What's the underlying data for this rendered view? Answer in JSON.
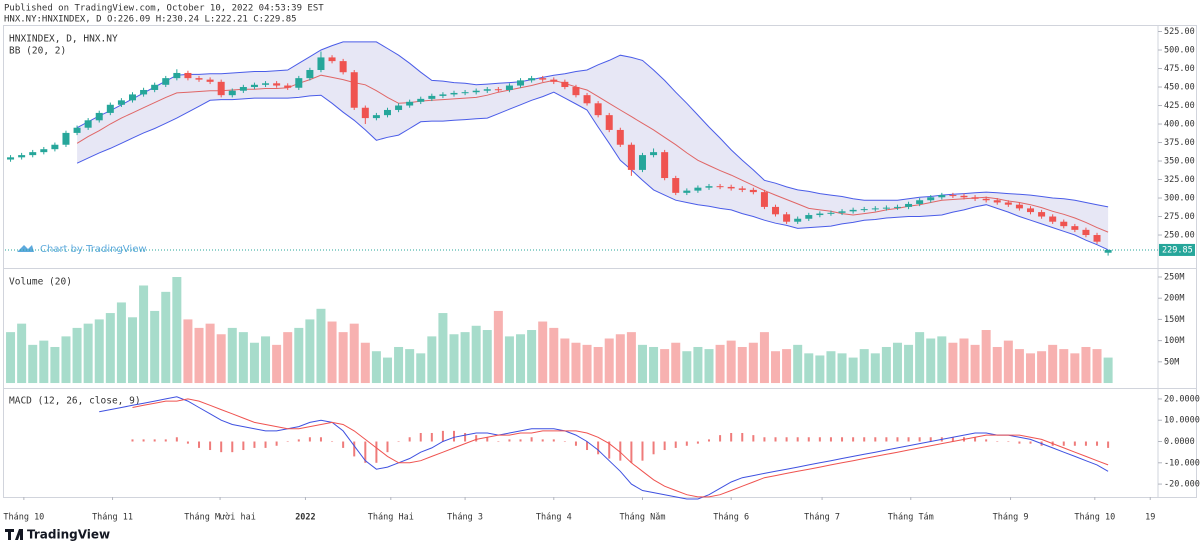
{
  "header": {
    "published": "Published on TradingView.com, October 10, 2022 04:53:39 EST",
    "symbol_line": "HNX.NY:HNXINDEX, D O:226.09 H:230.24 L:222.21 C:229.85"
  },
  "watermark": "Chart by TradingView",
  "footer": "TradingView",
  "chart_data": [
    {
      "type": "candlestick",
      "title": "HNXINDEX, D, HNX.NY",
      "indicator": "BB (20, 2)",
      "open": [
        352,
        355,
        358,
        362,
        366,
        372,
        388,
        395,
        405,
        415,
        426,
        432,
        440,
        446,
        453,
        462,
        469,
        462,
        460,
        457,
        439,
        445,
        450,
        453,
        455,
        452,
        449,
        462,
        473,
        490,
        485,
        470,
        422,
        408,
        412,
        419,
        425,
        430,
        434,
        438,
        440,
        442,
        443,
        445,
        447,
        446,
        452,
        459,
        462,
        460,
        457,
        450,
        439,
        428,
        412,
        392,
        372,
        338,
        358,
        362,
        327,
        307,
        310,
        314,
        316,
        315,
        313,
        311,
        308,
        288,
        278,
        268,
        272,
        277,
        279,
        280,
        282,
        284,
        285,
        286,
        287,
        288,
        292,
        297,
        301,
        304,
        303,
        301,
        299,
        297,
        294,
        291,
        286,
        281,
        275,
        268,
        262,
        257,
        250,
        226.09
      ],
      "high": [
        358,
        361,
        365,
        369,
        375,
        391,
        398,
        408,
        418,
        429,
        435,
        443,
        449,
        456,
        465,
        474,
        472,
        465,
        463,
        460,
        448,
        453,
        456,
        458,
        458,
        455,
        465,
        476,
        498,
        493,
        488,
        473,
        425,
        415,
        422,
        428,
        433,
        437,
        441,
        443,
        445,
        446,
        448,
        450,
        450,
        455,
        462,
        465,
        465,
        463,
        460,
        453,
        442,
        431,
        415,
        395,
        375,
        361,
        367,
        365,
        330,
        313,
        317,
        319,
        319,
        318,
        316,
        314,
        311,
        291,
        281,
        275,
        280,
        282,
        283,
        285,
        287,
        288,
        289,
        290,
        291,
        295,
        300,
        304,
        307,
        307,
        306,
        304,
        302,
        300,
        297,
        294,
        289,
        284,
        278,
        271,
        265,
        260,
        253,
        230.24
      ],
      "low": [
        349,
        352,
        355,
        359,
        363,
        369,
        385,
        392,
        402,
        412,
        423,
        429,
        437,
        443,
        450,
        459,
        459,
        457,
        454,
        436,
        436,
        442,
        447,
        450,
        449,
        446,
        446,
        459,
        470,
        482,
        467,
        419,
        400,
        405,
        409,
        416,
        422,
        427,
        431,
        435,
        437,
        439,
        440,
        442,
        443,
        443,
        449,
        456,
        457,
        454,
        447,
        436,
        425,
        409,
        389,
        369,
        330,
        335,
        355,
        324,
        304,
        304,
        307,
        311,
        312,
        310,
        308,
        305,
        285,
        275,
        265,
        265,
        269,
        274,
        276,
        277,
        279,
        281,
        282,
        283,
        284,
        285,
        289,
        294,
        298,
        300,
        298,
        296,
        294,
        291,
        288,
        283,
        278,
        272,
        265,
        259,
        254,
        247,
        238,
        222.21
      ],
      "close": [
        355,
        358,
        362,
        366,
        372,
        388,
        395,
        405,
        415,
        426,
        432,
        440,
        446,
        453,
        462,
        469,
        462,
        460,
        457,
        439,
        445,
        450,
        453,
        455,
        452,
        449,
        462,
        473,
        490,
        485,
        470,
        422,
        408,
        412,
        419,
        425,
        430,
        434,
        438,
        440,
        442,
        443,
        445,
        447,
        446,
        452,
        459,
        462,
        460,
        457,
        450,
        439,
        428,
        412,
        392,
        372,
        338,
        358,
        362,
        327,
        307,
        310,
        314,
        316,
        315,
        313,
        311,
        308,
        288,
        278,
        268,
        272,
        277,
        279,
        280,
        282,
        284,
        285,
        286,
        287,
        288,
        292,
        297,
        301,
        304,
        303,
        301,
        299,
        297,
        294,
        291,
        286,
        281,
        275,
        268,
        262,
        257,
        250,
        241,
        229.85
      ],
      "up_color": "#26a69a",
      "down_color": "#ef5350",
      "bands": {
        "color": "#4a5ce8",
        "middle_color": "#e06666",
        "fill": "rgba(120,123,200,0.18)",
        "upper": [
          null,
          null,
          null,
          null,
          null,
          null,
          395,
          403,
          411,
          418,
          426,
          434,
          442,
          450,
          458,
          466,
          467,
          467,
          468,
          468,
          469,
          470,
          471,
          471,
          472,
          473,
          482,
          491,
          500,
          506,
          511,
          511,
          511,
          511,
          502,
          493,
          482,
          470,
          459,
          458,
          456,
          455,
          453,
          454,
          455,
          456,
          457,
          460,
          463,
          466,
          468,
          471,
          473,
          480,
          486,
          493,
          490,
          486,
          473,
          459,
          443,
          428,
          412,
          396,
          381,
          365,
          351,
          338,
          324,
          320,
          315,
          311,
          309,
          306,
          304,
          302,
          299,
          297,
          297,
          297,
          297,
          299,
          301,
          302,
          304,
          305,
          306,
          307,
          308,
          307,
          306,
          305,
          304,
          302,
          300,
          299,
          297,
          294,
          291,
          288
        ],
        "middle": [
          null,
          null,
          null,
          null,
          null,
          null,
          374,
          383,
          391,
          400,
          408,
          415,
          422,
          429,
          436,
          442,
          443,
          444,
          445,
          445,
          446,
          447,
          447,
          448,
          448,
          449,
          455,
          460,
          466,
          463,
          460,
          456,
          453,
          445,
          436,
          428,
          429,
          431,
          432,
          433,
          434,
          435,
          436,
          439,
          443,
          446,
          449,
          452,
          456,
          459,
          455,
          450,
          446,
          437,
          428,
          419,
          410,
          401,
          392,
          382,
          372,
          361,
          351,
          344,
          337,
          331,
          324,
          317,
          310,
          304,
          298,
          292,
          286,
          284,
          282,
          279,
          277,
          279,
          281,
          284,
          286,
          289,
          291,
          294,
          297,
          298,
          299,
          300,
          301,
          299,
          296,
          294,
          291,
          287,
          282,
          278,
          273,
          267,
          260,
          254
        ],
        "lower": [
          null,
          null,
          null,
          null,
          null,
          null,
          347,
          354,
          361,
          367,
          374,
          381,
          388,
          394,
          401,
          408,
          416,
          424,
          432,
          433,
          433,
          434,
          435,
          435,
          435,
          435,
          436,
          438,
          439,
          428,
          416,
          405,
          392,
          378,
          382,
          385,
          394,
          403,
          404,
          404,
          405,
          406,
          407,
          408,
          414,
          420,
          426,
          432,
          437,
          443,
          435,
          427,
          419,
          396,
          374,
          351,
          338,
          324,
          311,
          304,
          297,
          294,
          291,
          289,
          286,
          284,
          279,
          275,
          270,
          266,
          263,
          259,
          260,
          261,
          262,
          265,
          267,
          270,
          271,
          273,
          274,
          275,
          275,
          276,
          277,
          281,
          284,
          288,
          291,
          286,
          281,
          275,
          270,
          265,
          260,
          255,
          250,
          243,
          237,
          230
        ]
      },
      "last_color": "#26a69a",
      "xlim": [
        -0.5,
        103.5
      ],
      "ylim": [
        206.8,
        533.8
      ],
      "yticks": [
        {
          "value": 250,
          "label": "250.00"
        },
        {
          "value": 275,
          "label": "275.00"
        },
        {
          "value": 300,
          "label": "300.00"
        },
        {
          "value": 325,
          "label": "325.00"
        },
        {
          "value": 350,
          "label": "350.00"
        },
        {
          "value": 375,
          "label": "375.00"
        },
        {
          "value": 400,
          "label": "400.00"
        },
        {
          "value": 425,
          "label": "425.00"
        },
        {
          "value": 450,
          "label": "450.00"
        },
        {
          "value": 475,
          "label": "475.00"
        },
        {
          "value": 500,
          "label": "500.00"
        },
        {
          "value": 525,
          "label": "525.00"
        }
      ]
    },
    {
      "type": "volume",
      "title": "Volume (20)",
      "values": [
        120,
        140,
        90,
        100,
        85,
        110,
        130,
        140,
        150,
        165,
        190,
        155,
        230,
        170,
        215,
        250,
        150,
        130,
        140,
        115,
        130,
        120,
        95,
        110,
        90,
        120,
        130,
        150,
        175,
        145,
        120,
        140,
        95,
        75,
        60,
        85,
        80,
        70,
        110,
        165,
        115,
        120,
        135,
        125,
        170,
        110,
        115,
        125,
        145,
        130,
        105,
        95,
        90,
        85,
        105,
        115,
        120,
        90,
        85,
        80,
        95,
        75,
        85,
        80,
        90,
        100,
        85,
        95,
        120,
        75,
        80,
        90,
        70,
        65,
        75,
        70,
        60,
        80,
        70,
        85,
        95,
        90,
        120,
        105,
        110,
        95,
        105,
        90,
        125,
        85,
        100,
        80,
        70,
        75,
        90,
        80,
        70,
        85,
        80,
        60
      ],
      "up_color": "#a7dccb",
      "down_color": "#f7b1b0",
      "xlim": [
        -0.5,
        103.5
      ],
      "ylim": [
        -7,
        266.5
      ],
      "yticks": [
        {
          "value": 50,
          "label": "50M"
        },
        {
          "value": 100,
          "label": "100M"
        },
        {
          "value": 150,
          "label": "150M"
        },
        {
          "value": 200,
          "label": "200M"
        },
        {
          "value": 250,
          "label": "250M"
        }
      ]
    },
    {
      "type": "macd",
      "title": "MACD (12, 26, close, 9)",
      "macd": [
        null,
        null,
        null,
        null,
        null,
        null,
        null,
        null,
        14,
        15,
        16,
        17,
        18,
        19,
        20,
        21,
        19,
        16,
        13,
        10,
        8,
        7,
        6,
        5,
        5,
        6,
        7,
        9,
        10,
        9,
        5,
        -2,
        -9,
        -13,
        -12,
        -10,
        -8,
        -5,
        -3,
        0,
        2,
        3,
        4,
        4,
        3,
        4,
        5,
        6,
        6,
        6,
        5,
        3,
        0,
        -4,
        -9,
        -14,
        -20,
        -23,
        -24,
        -25,
        -26,
        -27,
        -27,
        -25,
        -22,
        -19,
        -17,
        -16,
        -15,
        -14,
        -13,
        -12,
        -11,
        -10,
        -9,
        -8,
        -7,
        -6,
        -5,
        -4,
        -3,
        -2,
        -1,
        0,
        1,
        2,
        3,
        4,
        4,
        3,
        3,
        2,
        1,
        -1,
        -3,
        -5,
        -7,
        -9,
        -11,
        -14
      ],
      "signal": [
        null,
        null,
        null,
        null,
        null,
        null,
        null,
        null,
        null,
        null,
        null,
        16,
        17,
        18,
        19,
        19,
        20,
        19,
        17,
        15,
        13,
        11,
        9,
        8,
        7,
        6,
        6,
        7,
        8,
        9,
        8,
        5,
        1,
        -3,
        -7,
        -10,
        -10,
        -9,
        -7,
        -5,
        -3,
        -1,
        1,
        2,
        3,
        3,
        4,
        4,
        5,
        5,
        5,
        5,
        4,
        2,
        -1,
        -5,
        -10,
        -14,
        -18,
        -21,
        -23,
        -25,
        -26,
        -26,
        -25,
        -23,
        -21,
        -19,
        -17,
        -16,
        -15,
        -14,
        -13,
        -12,
        -11,
        -10,
        -9,
        -8,
        -7,
        -6,
        -5,
        -4,
        -3,
        -2,
        -1,
        0,
        1,
        2,
        3,
        3,
        3,
        3,
        2,
        1,
        -1,
        -3,
        -5,
        -7,
        -9,
        -11
      ],
      "histogram": [
        null,
        null,
        null,
        null,
        null,
        null,
        null,
        null,
        null,
        null,
        null,
        1,
        1,
        1,
        1,
        2,
        -1,
        -3,
        -4,
        -5,
        -5,
        -4,
        -3,
        -3,
        -2,
        0,
        1,
        2,
        2,
        0,
        -3,
        -7,
        -10,
        -10,
        -5,
        0,
        2,
        4,
        4,
        5,
        5,
        4,
        3,
        2,
        0,
        1,
        1,
        2,
        1,
        1,
        0,
        -2,
        -4,
        -6,
        -8,
        -9,
        -10,
        -9,
        -6,
        -4,
        -3,
        -2,
        -1,
        1,
        3,
        4,
        4,
        3,
        2,
        2,
        2,
        2,
        2,
        2,
        2,
        2,
        2,
        2,
        2,
        2,
        2,
        2,
        2,
        2,
        2,
        2,
        2,
        2,
        1,
        0,
        0,
        -1,
        -1,
        -2,
        -2,
        -2,
        -2,
        -2,
        -2,
        -3
      ],
      "macd_color": "#3f51e0",
      "signal_color": "#ef5350",
      "histogram_color": "#ef7b7a",
      "xlim": [
        -0.5,
        103.5
      ],
      "ylim": [
        -25.6,
        24.2
      ],
      "yticks": [
        {
          "value": 20,
          "label": "20.0000"
        },
        {
          "value": 10,
          "label": "10.0000"
        },
        {
          "value": 0,
          "label": "0.0000"
        },
        {
          "value": -10,
          "label": "-10.0000"
        },
        {
          "value": -20,
          "label": "-20.0000"
        }
      ],
      "xticks": [
        {
          "value": 1.2,
          "label": "Tháng 10"
        },
        {
          "value": 9.2,
          "label": "Tháng 11"
        },
        {
          "value": 18.9,
          "label": "Tháng Mười hai"
        },
        {
          "value": 26.6,
          "label": "2022"
        },
        {
          "value": 34.3,
          "label": "Tháng Hai"
        },
        {
          "value": 41,
          "label": "Tháng 3"
        },
        {
          "value": 49,
          "label": "Tháng 4"
        },
        {
          "value": 57,
          "label": "Tháng Năm"
        },
        {
          "value": 65,
          "label": "Tháng 6"
        },
        {
          "value": 73.2,
          "label": "Tháng 7"
        },
        {
          "value": 81.2,
          "label": "Tháng Tám"
        },
        {
          "value": 90.2,
          "label": "Tháng 9"
        },
        {
          "value": 97.8,
          "label": "Tháng 10"
        },
        {
          "value": 102.8,
          "label": "19"
        }
      ]
    }
  ]
}
